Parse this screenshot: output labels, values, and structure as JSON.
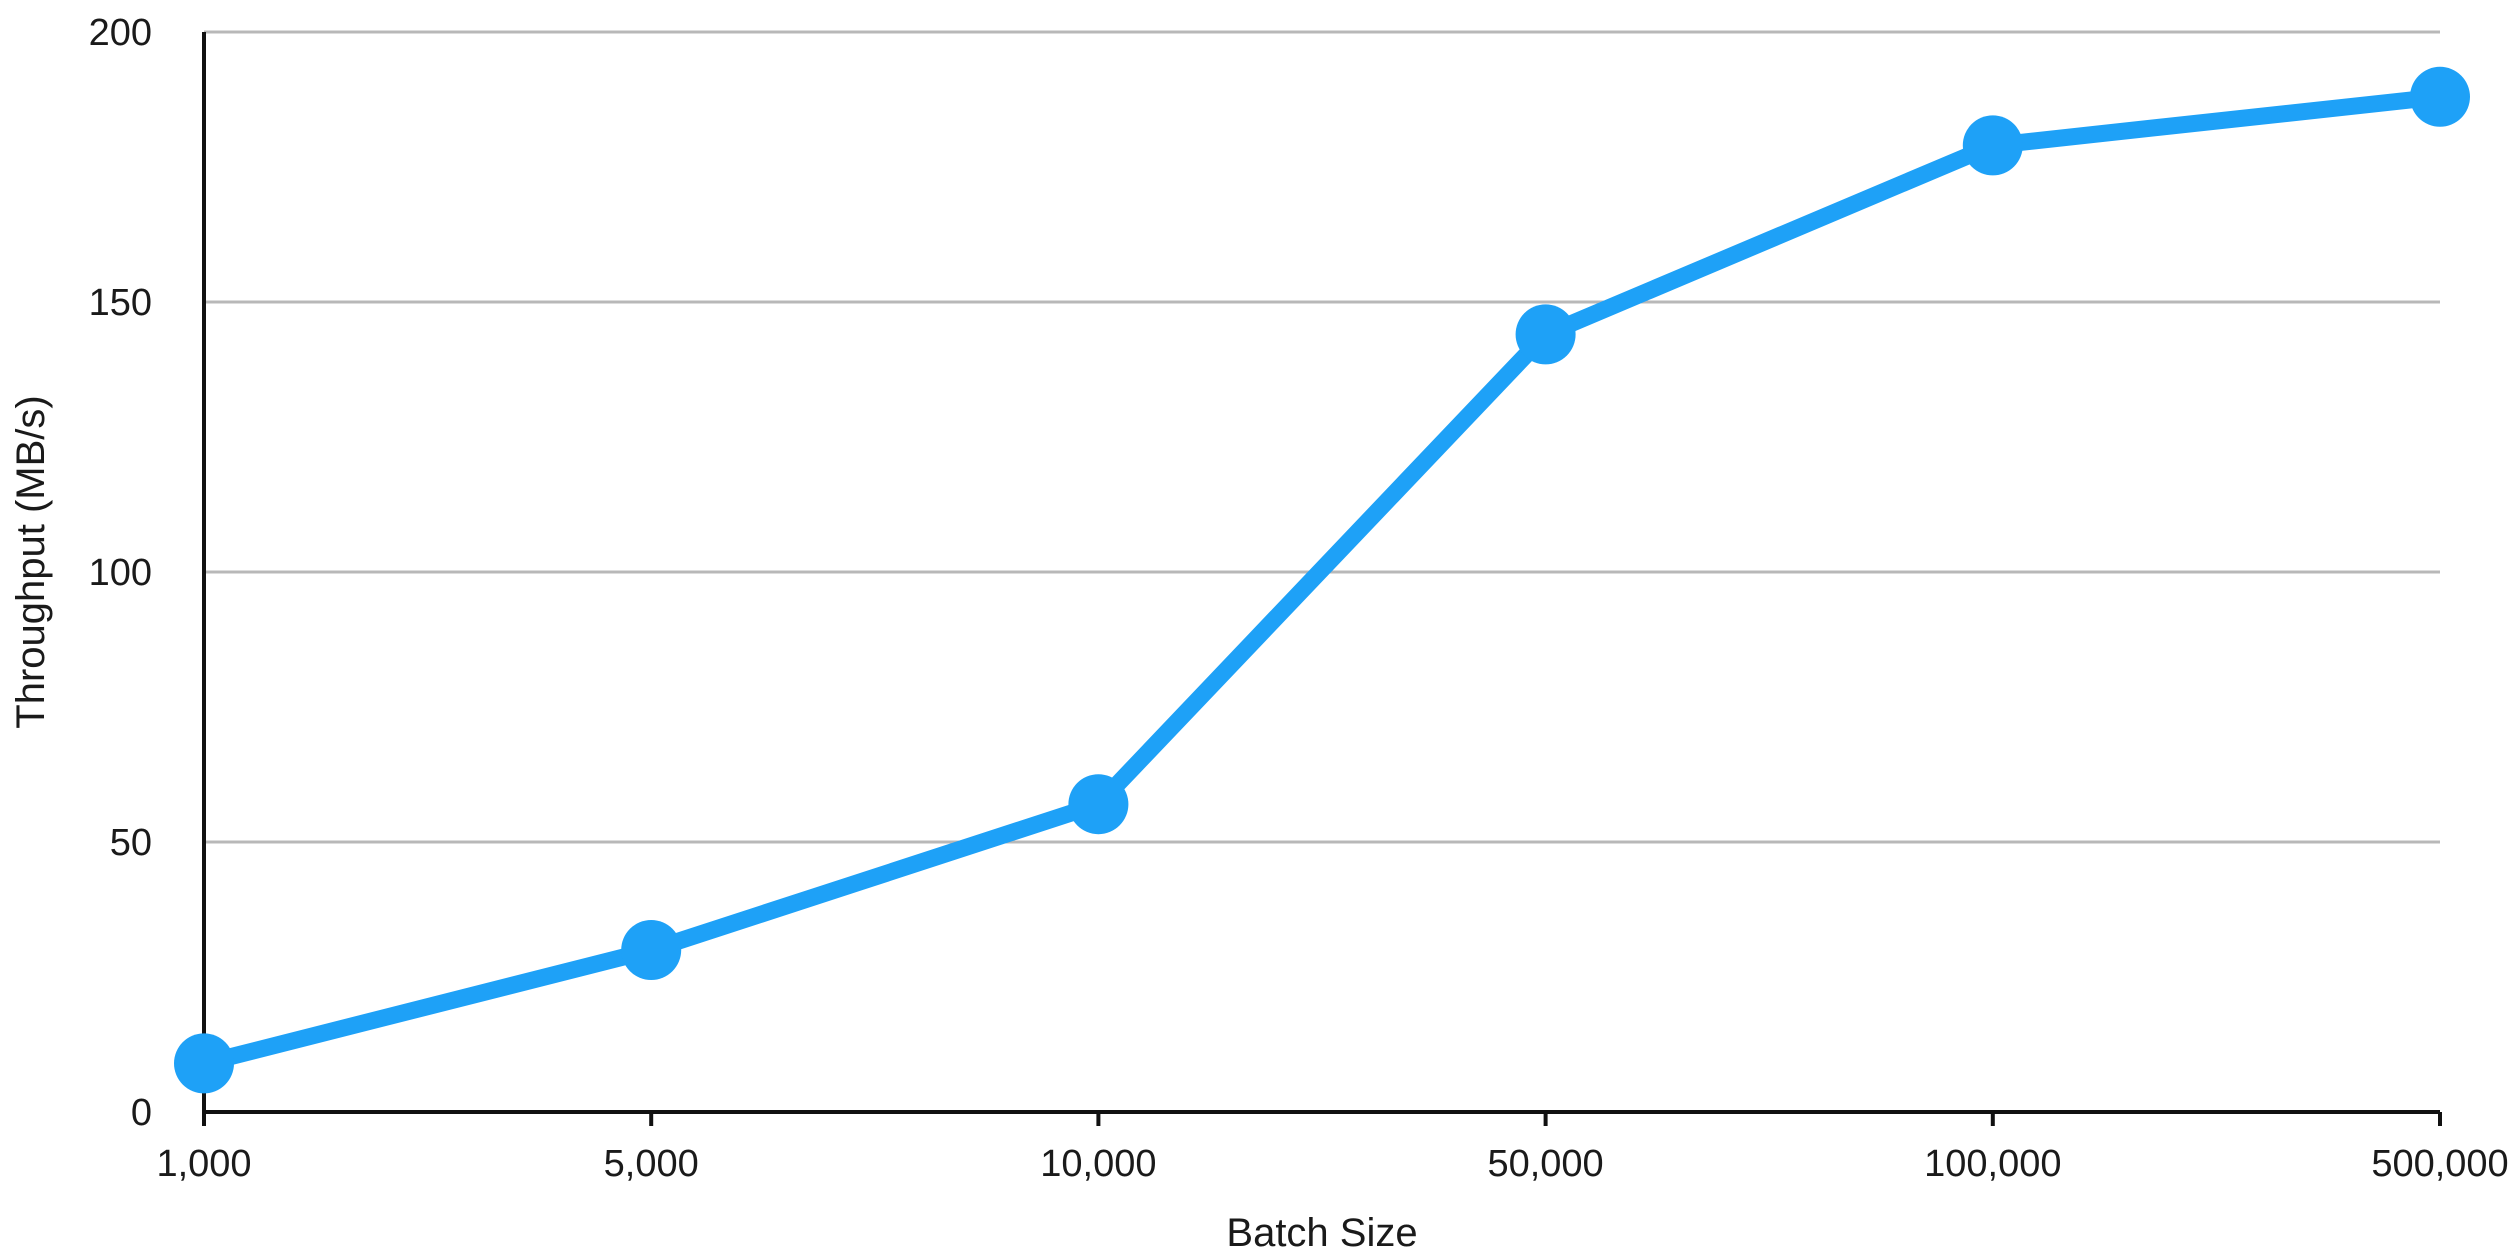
{
  "chart_data": {
    "type": "line",
    "xlabel": "Batch Size",
    "ylabel": "Throughput (MB/s)",
    "categories": [
      "1,000",
      "5,000",
      "10,000",
      "50,000",
      "100,000",
      "500,000"
    ],
    "series": [
      {
        "values": [
          9,
          30,
          57,
          144,
          179,
          188
        ],
        "color": "#1ea1f7"
      }
    ],
    "y_ticks": [
      0,
      50,
      100,
      150,
      200
    ],
    "y_tick_labels": [
      "0",
      "50",
      "100",
      "150",
      "200"
    ],
    "ylim": [
      0,
      200
    ],
    "grid": true,
    "legend": "none"
  }
}
